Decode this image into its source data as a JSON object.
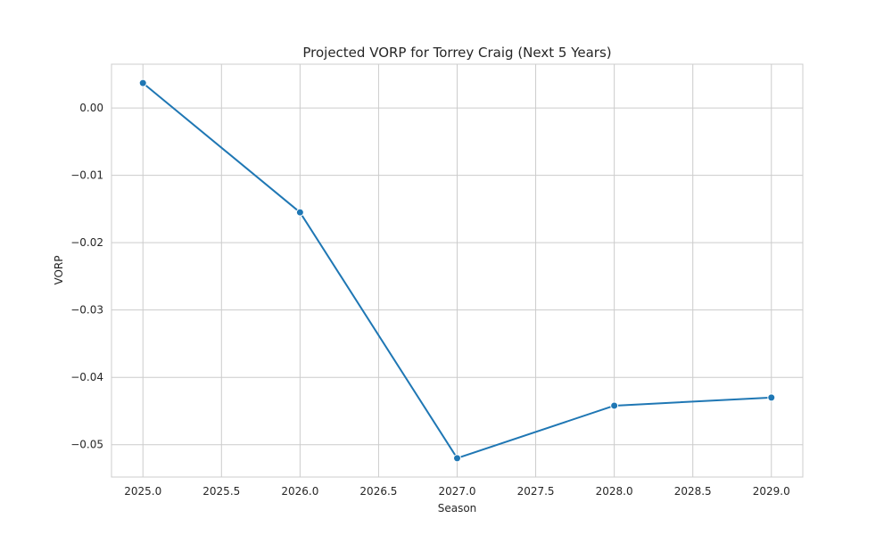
{
  "chart_data": {
    "type": "line",
    "title": "Projected VORP for Torrey Craig (Next 5 Years)",
    "xlabel": "Season",
    "ylabel": "VORP",
    "x": [
      2025.0,
      2026.0,
      2027.0,
      2028.0,
      2029.0
    ],
    "series": [
      {
        "values": [
          0.0037,
          -0.0155,
          -0.052,
          -0.0442,
          -0.043
        ],
        "color": "#1f77b4",
        "marker": "circle"
      }
    ],
    "xlim": [
      2024.8,
      2029.2
    ],
    "ylim": [
      -0.0548,
      0.0065
    ],
    "xticks": [
      2025.0,
      2025.5,
      2026.0,
      2026.5,
      2027.0,
      2027.5,
      2028.0,
      2028.5,
      2029.0
    ],
    "xtick_labels": [
      "2025.0",
      "2025.5",
      "2026.0",
      "2026.5",
      "2027.0",
      "2027.5",
      "2028.0",
      "2028.5",
      "2029.0"
    ],
    "yticks": [
      0.0,
      -0.01,
      -0.02,
      -0.03,
      -0.04,
      -0.05
    ],
    "ytick_labels": [
      "0.00",
      "−0.01",
      "−0.02",
      "−0.03",
      "−0.04",
      "−0.05"
    ],
    "grid": true,
    "style": "whitegrid"
  }
}
